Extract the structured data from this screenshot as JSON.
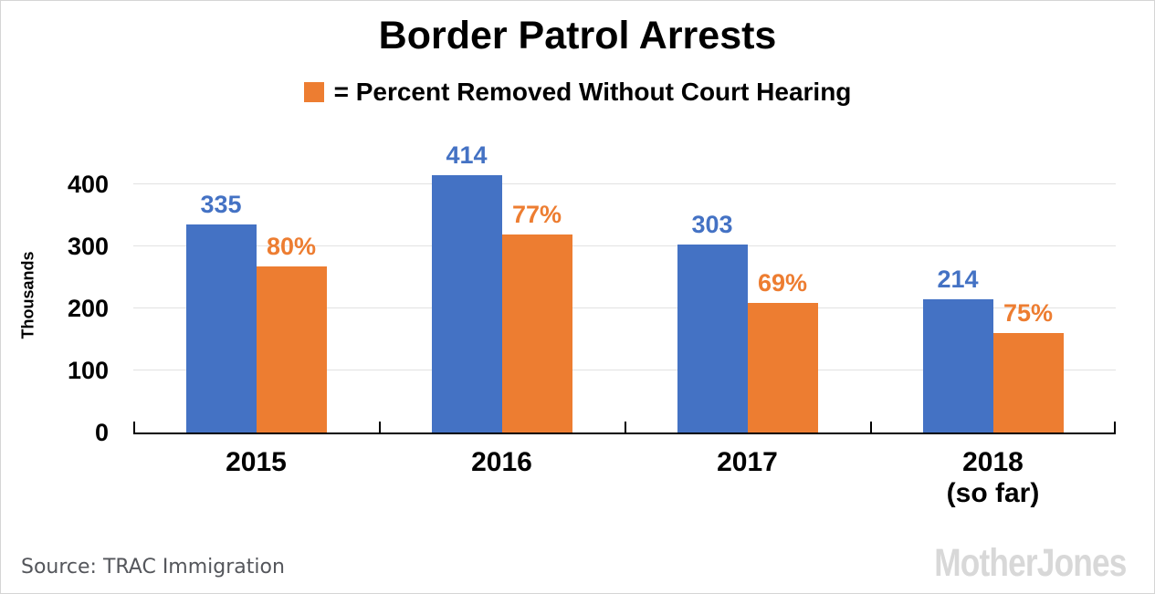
{
  "chart_data": {
    "type": "bar",
    "title": "Border Patrol Arrests",
    "legend": {
      "marker_color": "#ED7D31",
      "label": "= Percent Removed Without Court Hearing"
    },
    "ylabel": "Thousands",
    "ylim": [
      0,
      444
    ],
    "yticks": [
      0,
      100,
      200,
      300,
      400
    ],
    "grid": "horizontal",
    "categories": [
      {
        "label": "2015",
        "sublabel": ""
      },
      {
        "label": "2016",
        "sublabel": ""
      },
      {
        "label": "2017",
        "sublabel": ""
      },
      {
        "label": "2018",
        "sublabel": "(so far)"
      }
    ],
    "series": [
      {
        "name": "arrests",
        "color": "#4472C4",
        "values": [
          335,
          414,
          303,
          214
        ],
        "value_labels": [
          "335",
          "414",
          "303",
          "214"
        ]
      },
      {
        "name": "removed-without-court-hearing",
        "color": "#ED7D31",
        "values": [
          268,
          319,
          209,
          160
        ],
        "percent_removed": [
          80,
          77,
          69,
          75
        ],
        "value_labels": [
          "80%",
          "77%",
          "69%",
          "75%"
        ]
      }
    ],
    "footer": {
      "source": "Source: TRAC Immigration",
      "branding": "MotherJones"
    }
  }
}
